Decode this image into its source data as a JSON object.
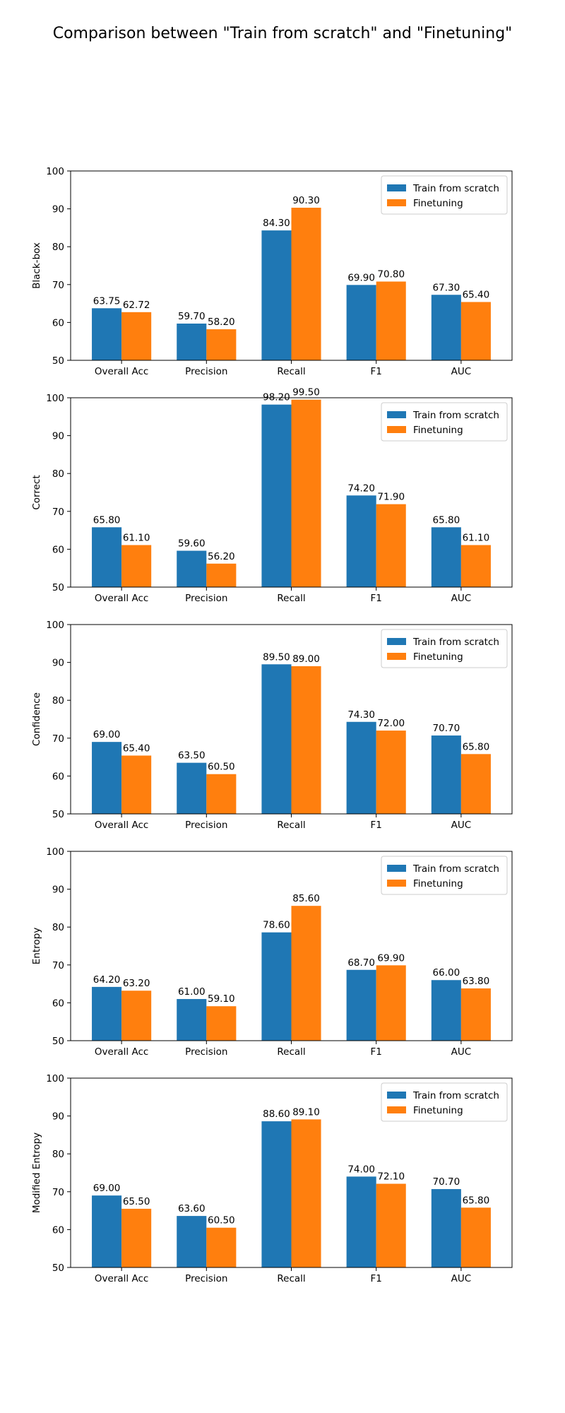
{
  "figure_title": "Comparison between \"Train from scratch\" and \"Finetuning\"",
  "colors": {
    "train_from_scratch": "#1f77b4",
    "finetuning": "#ff7f0e"
  },
  "chart_data": [
    {
      "type": "bar",
      "ylabel": "Black-box",
      "categories": [
        "Overall Acc",
        "Precision",
        "Recall",
        "F1",
        "AUC"
      ],
      "ylim": [
        50,
        100
      ],
      "yticks": [
        50,
        60,
        70,
        80,
        90,
        100
      ],
      "legend": "top-right",
      "grid": false,
      "series": [
        {
          "name": "Train from scratch",
          "values": [
            63.75,
            59.7,
            84.3,
            69.9,
            67.3
          ],
          "labels": [
            "63.75",
            "59.70",
            "84.30",
            "69.90",
            "67.30"
          ]
        },
        {
          "name": "Finetuning",
          "values": [
            62.72,
            58.2,
            90.3,
            70.8,
            65.4
          ],
          "labels": [
            "62.72",
            "58.20",
            "90.30",
            "70.80",
            "65.40"
          ]
        }
      ]
    },
    {
      "type": "bar",
      "ylabel": "Correct",
      "categories": [
        "Overall Acc",
        "Precision",
        "Recall",
        "F1",
        "AUC"
      ],
      "ylim": [
        50,
        100
      ],
      "yticks": [
        50,
        60,
        70,
        80,
        90,
        100
      ],
      "legend": "top-right",
      "grid": false,
      "series": [
        {
          "name": "Train from scratch",
          "values": [
            65.8,
            59.6,
            98.2,
            74.2,
            65.8
          ],
          "labels": [
            "65.80",
            "59.60",
            "98.20",
            "74.20",
            "65.80"
          ]
        },
        {
          "name": "Finetuning",
          "values": [
            61.1,
            56.2,
            99.5,
            71.9,
            61.1
          ],
          "labels": [
            "61.10",
            "56.20",
            "99.50",
            "71.90",
            "61.10"
          ]
        }
      ]
    },
    {
      "type": "bar",
      "ylabel": "Confidence",
      "categories": [
        "Overall Acc",
        "Precision",
        "Recall",
        "F1",
        "AUC"
      ],
      "ylim": [
        50,
        100
      ],
      "yticks": [
        50,
        60,
        70,
        80,
        90,
        100
      ],
      "legend": "top-right",
      "grid": false,
      "series": [
        {
          "name": "Train from scratch",
          "values": [
            69.0,
            63.5,
            89.5,
            74.3,
            70.7
          ],
          "labels": [
            "69.00",
            "63.50",
            "89.50",
            "74.30",
            "70.70"
          ]
        },
        {
          "name": "Finetuning",
          "values": [
            65.4,
            60.5,
            89.0,
            72.0,
            65.8
          ],
          "labels": [
            "65.40",
            "60.50",
            "89.00",
            "72.00",
            "65.80"
          ]
        }
      ]
    },
    {
      "type": "bar",
      "ylabel": "Entropy",
      "categories": [
        "Overall Acc",
        "Precision",
        "Recall",
        "F1",
        "AUC"
      ],
      "ylim": [
        50,
        100
      ],
      "yticks": [
        50,
        60,
        70,
        80,
        90,
        100
      ],
      "legend": "top-right",
      "grid": false,
      "series": [
        {
          "name": "Train from scratch",
          "values": [
            64.2,
            61.0,
            78.6,
            68.7,
            66.0
          ],
          "labels": [
            "64.20",
            "61.00",
            "78.60",
            "68.70",
            "66.00"
          ]
        },
        {
          "name": "Finetuning",
          "values": [
            63.2,
            59.1,
            85.6,
            69.9,
            63.8
          ],
          "labels": [
            "63.20",
            "59.10",
            "85.60",
            "69.90",
            "63.80"
          ]
        }
      ]
    },
    {
      "type": "bar",
      "ylabel": "Modified Entropy",
      "categories": [
        "Overall Acc",
        "Precision",
        "Recall",
        "F1",
        "AUC"
      ],
      "ylim": [
        50,
        100
      ],
      "yticks": [
        50,
        60,
        70,
        80,
        90,
        100
      ],
      "legend": "top-right",
      "grid": false,
      "series": [
        {
          "name": "Train from scratch",
          "values": [
            69.0,
            63.6,
            88.6,
            74.0,
            70.7
          ],
          "labels": [
            "69.00",
            "63.60",
            "88.60",
            "74.00",
            "70.70"
          ]
        },
        {
          "name": "Finetuning",
          "values": [
            65.5,
            60.5,
            89.1,
            72.1,
            65.8
          ],
          "labels": [
            "65.50",
            "60.50",
            "89.10",
            "72.10",
            "65.80"
          ]
        }
      ]
    }
  ]
}
